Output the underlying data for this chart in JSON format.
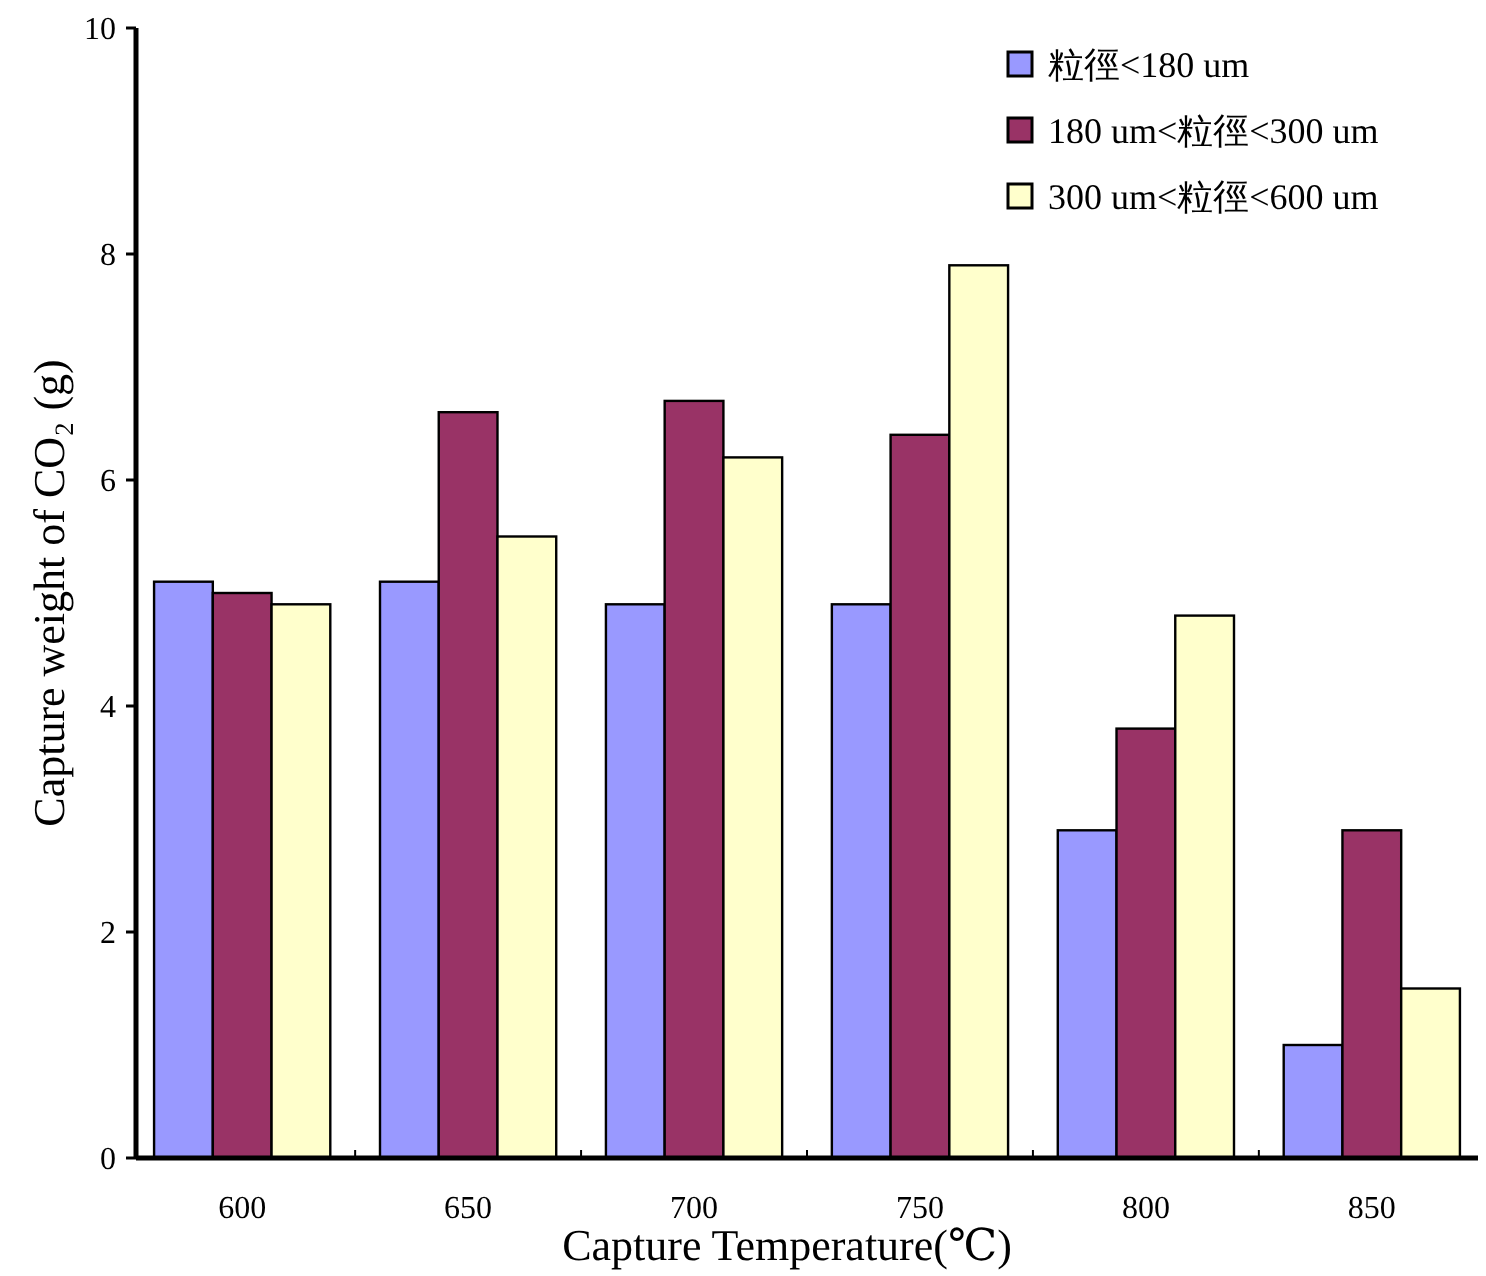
{
  "chart_data": {
    "type": "bar",
    "xlabel": "Capture Temperature(℃)",
    "ylabel": "Capture weight of CO₂ (g)",
    "categories": [
      "600",
      "650",
      "700",
      "750",
      "800",
      "850"
    ],
    "series": [
      {
        "name": "粒徑<180 um",
        "color": "#9999ff",
        "values": [
          5.1,
          5.1,
          4.9,
          4.9,
          2.9,
          1.0
        ]
      },
      {
        "name": "180 um<粒徑<300 um",
        "color": "#993366",
        "values": [
          5.0,
          6.6,
          6.7,
          6.4,
          3.8,
          2.9
        ]
      },
      {
        "name": "300 um<粒徑<600 um",
        "color": "#ffffcc",
        "values": [
          4.9,
          5.5,
          6.2,
          7.9,
          4.8,
          1.5
        ]
      }
    ],
    "ylim": [
      0,
      10
    ],
    "yticks": [
      0,
      2,
      4,
      6,
      8,
      10
    ],
    "grid": false,
    "legend": "top right"
  }
}
